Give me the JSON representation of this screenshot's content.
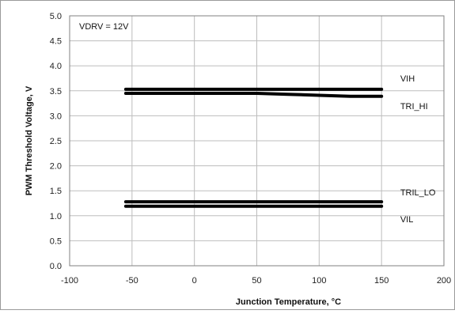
{
  "chart_data": {
    "type": "line",
    "title": "",
    "xlabel": "Junction Temperature, °C",
    "ylabel": "PWM Threshold Voltage, V",
    "xlim": [
      -100,
      200
    ],
    "ylim": [
      0.0,
      5.0
    ],
    "x_ticks": [
      "-100",
      "-50",
      "0",
      "50",
      "100",
      "150",
      "200"
    ],
    "y_ticks": [
      "0.0",
      "0.5",
      "1.0",
      "1.5",
      "2.0",
      "2.5",
      "3.0",
      "3.5",
      "4.0",
      "4.5",
      "5.0"
    ],
    "grid": true,
    "annotation": "VDRV = 12V",
    "line_color": "#000000",
    "series": [
      {
        "name": "VIH",
        "x": [
          -55,
          -25,
          0,
          25,
          50,
          75,
          100,
          125,
          150
        ],
        "y": [
          3.53,
          3.53,
          3.53,
          3.53,
          3.53,
          3.53,
          3.53,
          3.53,
          3.53
        ]
      },
      {
        "name": "TRI_HI",
        "x": [
          -55,
          -25,
          0,
          25,
          50,
          75,
          100,
          125,
          150
        ],
        "y": [
          3.45,
          3.45,
          3.45,
          3.45,
          3.45,
          3.43,
          3.41,
          3.39,
          3.39
        ]
      },
      {
        "name": "TRIL_LO",
        "x": [
          -55,
          -25,
          0,
          25,
          50,
          75,
          100,
          125,
          150
        ],
        "y": [
          1.28,
          1.28,
          1.28,
          1.28,
          1.28,
          1.28,
          1.28,
          1.28,
          1.28
        ]
      },
      {
        "name": "VIL",
        "x": [
          -55,
          -25,
          0,
          25,
          50,
          75,
          100,
          125,
          150
        ],
        "y": [
          1.19,
          1.19,
          1.19,
          1.19,
          1.19,
          1.19,
          1.19,
          1.19,
          1.19
        ]
      }
    ]
  }
}
